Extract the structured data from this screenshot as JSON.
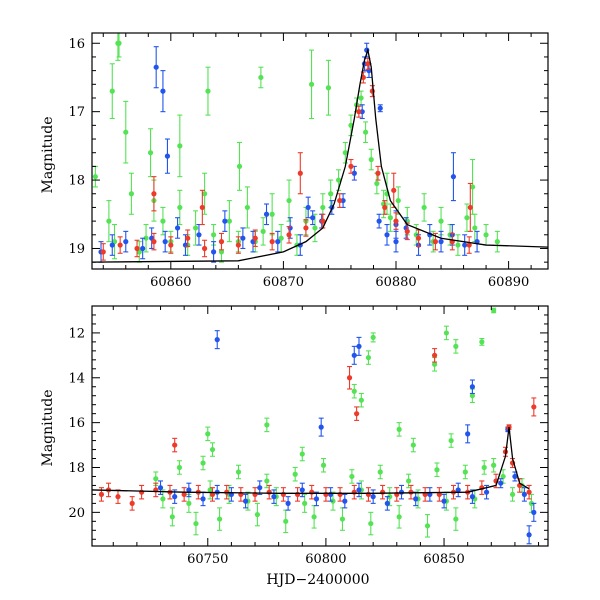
{
  "colors": {
    "green": "#55e355",
    "blue": "#2255ee",
    "red": "#ee3a2a",
    "model": "#000000"
  },
  "chart_data": [
    {
      "type": "scatter",
      "title": "",
      "xlabel": "",
      "ylabel": "Magnitude",
      "xlim": [
        60853,
        60893.5
      ],
      "ylim": [
        19.3,
        15.85
      ],
      "y_inverted": true,
      "xticks": [
        60860,
        60870,
        60880,
        60890
      ],
      "yticks": [
        16,
        17,
        18,
        19
      ],
      "grid": false,
      "legend": "none",
      "model_curve": {
        "x": [
          60853,
          60866,
          60870,
          60872,
          60873.5,
          60874.5,
          60875.5,
          60876.3,
          60876.8,
          60877.2,
          60877.5,
          60877.8,
          60878.2,
          60878.7,
          60879.5,
          60881,
          60884,
          60888,
          60893.5
        ],
        "y": [
          19.2,
          19.18,
          19.05,
          18.9,
          18.7,
          18.35,
          17.8,
          17.1,
          16.6,
          16.25,
          16.1,
          16.35,
          17.1,
          17.8,
          18.3,
          18.65,
          18.85,
          18.95,
          18.98
        ]
      },
      "series": [
        {
          "color_key": "green",
          "x": [
            60853.3,
            60854.5,
            60855.0,
            60855.4,
            60856.0,
            60856.5,
            60857.2,
            60857.8,
            60858.5,
            60859.3,
            60860.0,
            60860.8,
            60861.5,
            60862.2,
            60863.0,
            60863.8,
            60864.5,
            60865.2,
            60866.0,
            60866.8,
            60867.5,
            60868.2,
            60869.0,
            60869.8,
            60870.5,
            60871.2,
            60872.0,
            60872.8,
            60873.5,
            60874.2,
            60874.9,
            60875.5,
            60876.0,
            60876.5,
            60876.9,
            60877.3,
            60877.8,
            60878.3,
            60878.9,
            60879.5,
            60880.2,
            60881.0,
            60881.8,
            60882.5,
            60883.3,
            60884.0,
            60884.8,
            60885.5,
            60886.3,
            60887.0,
            60888.0,
            60889.0,
            60854.8,
            60855.3,
            60858.2,
            60860.8,
            60863.3,
            60866.1,
            60868.0,
            60872.5,
            60874.0,
            60879.2,
            60886.8
          ],
          "y": [
            17.95,
            18.6,
            18.9,
            16.0,
            17.3,
            18.2,
            19.05,
            18.85,
            18.3,
            18.6,
            18.9,
            18.4,
            18.95,
            18.7,
            18.2,
            18.8,
            19.05,
            18.6,
            18.9,
            18.4,
            18.9,
            18.75,
            18.5,
            18.85,
            18.3,
            18.95,
            18.6,
            18.7,
            18.4,
            18.2,
            18.0,
            17.6,
            17.2,
            16.9,
            16.8,
            17.3,
            17.7,
            18.05,
            18.35,
            18.55,
            18.3,
            18.6,
            18.8,
            18.4,
            18.9,
            18.6,
            18.8,
            18.95,
            18.55,
            18.7,
            18.8,
            18.9,
            16.7,
            16.0,
            17.6,
            17.5,
            16.7,
            17.8,
            16.5,
            16.6,
            16.65,
            18.2,
            18.1
          ],
          "err": [
            0.15,
            0.3,
            0.25,
            0.2,
            0.45,
            0.3,
            0.15,
            0.2,
            0.3,
            0.2,
            0.15,
            0.25,
            0.15,
            0.25,
            0.3,
            0.15,
            0.15,
            0.3,
            0.15,
            0.3,
            0.15,
            0.2,
            0.3,
            0.2,
            0.3,
            0.15,
            0.2,
            0.2,
            0.2,
            0.2,
            0.15,
            0.15,
            0.15,
            0.1,
            0.1,
            0.15,
            0.15,
            0.15,
            0.2,
            0.2,
            0.2,
            0.2,
            0.15,
            0.2,
            0.15,
            0.2,
            0.15,
            0.15,
            0.2,
            0.2,
            0.15,
            0.15,
            0.4,
            0.25,
            0.35,
            0.45,
            0.35,
            0.35,
            0.15,
            0.5,
            0.4,
            0.3,
            0.4
          ]
        },
        {
          "color_key": "blue",
          "x": [
            60853.8,
            60854.8,
            60856.0,
            60857.5,
            60858.3,
            60859.5,
            60860.6,
            60861.3,
            60862.5,
            60863.8,
            60864.8,
            60866.4,
            60867.3,
            60868.5,
            60869.5,
            60870.6,
            60871.5,
            60872.6,
            60873.4,
            60874.3,
            60875.3,
            60876.3,
            60877.0,
            60877.2,
            60877.4,
            60877.6,
            60878.5,
            60879.2,
            60880.0,
            60880.9,
            60882.0,
            60883.0,
            60884.0,
            60885.0,
            60886.1,
            60887.2,
            60858.7,
            60859.3,
            60859.7,
            60872.2,
            60878.6,
            60880.0,
            60885.1
          ],
          "y": [
            19.05,
            18.95,
            18.9,
            19.0,
            18.85,
            18.9,
            18.7,
            18.95,
            18.8,
            19.05,
            18.6,
            18.85,
            18.9,
            18.5,
            18.9,
            18.7,
            18.95,
            18.55,
            18.6,
            18.4,
            18.3,
            17.9,
            17.0,
            16.3,
            16.1,
            16.4,
            18.6,
            18.8,
            18.9,
            18.7,
            18.95,
            18.8,
            18.9,
            18.8,
            18.95,
            18.9,
            16.35,
            16.7,
            17.65,
            18.4,
            16.95,
            18.65,
            17.95
          ],
          "err": [
            0.15,
            0.15,
            0.15,
            0.15,
            0.15,
            0.15,
            0.15,
            0.15,
            0.15,
            0.15,
            0.15,
            0.15,
            0.15,
            0.15,
            0.15,
            0.15,
            0.15,
            0.1,
            0.1,
            0.1,
            0.1,
            0.1,
            0.1,
            0.1,
            0.1,
            0.1,
            0.1,
            0.15,
            0.15,
            0.15,
            0.15,
            0.15,
            0.15,
            0.15,
            0.15,
            0.15,
            0.3,
            0.3,
            0.25,
            0.15,
            0.05,
            0.2,
            0.35
          ]
        },
        {
          "color_key": "red",
          "x": [
            60854.0,
            60855.5,
            60857.0,
            60858.5,
            60860.0,
            60861.5,
            60863.0,
            60864.5,
            60866.0,
            60867.5,
            60869.0,
            60870.5,
            60872.0,
            60873.5,
            60875.0,
            60876.0,
            60876.7,
            60877.1,
            60877.5,
            60877.9,
            60878.4,
            60879.0,
            60880.0,
            60881.0,
            60882.0,
            60883.5,
            60885.0,
            60886.5,
            60858.5,
            60862.8,
            60871.5,
            60879.8,
            60886.6
          ],
          "y": [
            19.05,
            18.95,
            19.0,
            18.9,
            18.95,
            18.85,
            19.0,
            18.9,
            18.95,
            18.85,
            18.9,
            18.8,
            18.7,
            18.6,
            18.3,
            17.8,
            17.0,
            16.5,
            16.3,
            16.7,
            17.9,
            18.4,
            18.6,
            18.75,
            18.85,
            18.9,
            18.9,
            18.95,
            18.2,
            18.4,
            17.9,
            18.15,
            18.4
          ],
          "err": [
            0.12,
            0.12,
            0.12,
            0.12,
            0.12,
            0.12,
            0.12,
            0.12,
            0.12,
            0.12,
            0.12,
            0.12,
            0.12,
            0.1,
            0.1,
            0.1,
            0.08,
            0.08,
            0.08,
            0.08,
            0.1,
            0.1,
            0.12,
            0.12,
            0.12,
            0.12,
            0.12,
            0.12,
            0.25,
            0.25,
            0.3,
            0.25,
            0.35
          ]
        }
      ]
    },
    {
      "type": "scatter",
      "title": "",
      "xlabel": "HJD−2400000",
      "ylabel": "Magnitude",
      "xlim": [
        60701,
        60894
      ],
      "ylim": [
        21.5,
        10.8
      ],
      "y_inverted": true,
      "xticks": [
        60750,
        60800,
        60850
      ],
      "yticks": [
        12,
        14,
        16,
        18,
        20
      ],
      "grid": false,
      "legend": "none",
      "model_curve": {
        "x": [
          60701,
          60740,
          60780,
          60820,
          60860,
          60872,
          60876,
          60877.5,
          60879,
          60882,
          60886
        ],
        "y": [
          19.0,
          19.1,
          19.15,
          19.15,
          19.1,
          18.8,
          17.5,
          16.2,
          17.6,
          18.7,
          18.95
        ]
      },
      "series": [
        {
          "color_key": "green",
          "x": [
            60728,
            60731,
            60735,
            60738,
            60742,
            60745,
            60748,
            60751,
            60755,
            60759,
            60763,
            60767,
            60771,
            60775,
            60779,
            60783,
            60787,
            60791,
            60795,
            60799,
            60803,
            60807,
            60811,
            60815,
            60819,
            60823,
            60827,
            60831,
            60835,
            60839,
            60843,
            60847,
            60851,
            60855,
            60859,
            60863,
            60867,
            60871,
            60875,
            60879,
            60883,
            60887,
            60750,
            60752,
            60775,
            60790,
            60812,
            60818,
            60820,
            60831,
            60846,
            60851,
            60855,
            60862,
            60866,
            60871,
            60815,
            60837,
            60853
          ],
          "y": [
            18.5,
            19.4,
            20.2,
            18.0,
            19.6,
            20.5,
            17.8,
            19.0,
            20.3,
            19.2,
            18.2,
            19.5,
            20.1,
            18.6,
            19.3,
            20.4,
            18.3,
            19.6,
            20.2,
            17.9,
            19.5,
            20.3,
            18.4,
            19.0,
            20.5,
            18.2,
            19.3,
            20.2,
            18.6,
            19.4,
            20.6,
            18.1,
            19.5,
            20.3,
            18.2,
            19.4,
            18.0,
            17.9,
            18.4,
            19.2,
            18.8,
            19.6,
            16.5,
            17.2,
            16.1,
            17.4,
            14.6,
            13.1,
            12.2,
            16.3,
            13.4,
            12.0,
            12.6,
            14.8,
            12.4,
            11.0,
            15.0,
            17.0,
            16.8
          ],
          "err": [
            0.3,
            0.4,
            0.4,
            0.3,
            0.4,
            0.5,
            0.3,
            0.4,
            0.5,
            0.4,
            0.3,
            0.4,
            0.5,
            0.3,
            0.4,
            0.5,
            0.3,
            0.4,
            0.5,
            0.3,
            0.4,
            0.5,
            0.3,
            0.4,
            0.5,
            0.3,
            0.4,
            0.5,
            0.3,
            0.4,
            0.5,
            0.3,
            0.4,
            0.5,
            0.3,
            0.4,
            0.3,
            0.3,
            0.3,
            0.3,
            0.3,
            0.4,
            0.3,
            0.3,
            0.3,
            0.3,
            0.3,
            0.3,
            0.2,
            0.3,
            0.3,
            0.3,
            0.3,
            0.3,
            0.15,
            0.1,
            0.3,
            0.3,
            0.3
          ]
        },
        {
          "color_key": "blue",
          "x": [
            60730,
            60736,
            60742,
            60748,
            60754,
            60760,
            60766,
            60772,
            60778,
            60784,
            60790,
            60796,
            60802,
            60808,
            60814,
            60820,
            60826,
            60832,
            60838,
            60844,
            60850,
            60856,
            60862,
            60868,
            60874,
            60877,
            60880,
            60884,
            60888,
            60754,
            60798,
            60812,
            60814,
            60860,
            60862,
            60886
          ],
          "y": [
            18.9,
            19.3,
            19.0,
            19.4,
            19.1,
            19.2,
            19.5,
            18.9,
            19.3,
            19.6,
            19.0,
            19.4,
            19.2,
            19.5,
            19.0,
            19.3,
            19.6,
            19.1,
            19.4,
            19.2,
            19.5,
            19.0,
            19.3,
            19.1,
            18.7,
            16.3,
            18.4,
            19.2,
            20.0,
            12.3,
            16.2,
            13.0,
            12.6,
            16.5,
            14.4,
            21.0
          ],
          "err": [
            0.3,
            0.3,
            0.3,
            0.3,
            0.3,
            0.3,
            0.3,
            0.3,
            0.3,
            0.3,
            0.3,
            0.3,
            0.3,
            0.3,
            0.3,
            0.3,
            0.3,
            0.3,
            0.3,
            0.3,
            0.3,
            0.3,
            0.3,
            0.3,
            0.2,
            0.1,
            0.2,
            0.3,
            0.4,
            0.4,
            0.4,
            0.4,
            0.4,
            0.4,
            0.3,
            0.4
          ]
        },
        {
          "color_key": "red",
          "x": [
            60705,
            60708,
            60712,
            60718,
            60722,
            60728,
            60734,
            60740,
            60746,
            60752,
            60758,
            60764,
            60770,
            60776,
            60782,
            60788,
            60794,
            60800,
            60806,
            60812,
            60818,
            60824,
            60830,
            60836,
            60842,
            60848,
            60854,
            60860,
            60866,
            60872,
            60876,
            60877.5,
            60879,
            60882,
            60886,
            60736,
            60810,
            60813,
            60846,
            60888
          ],
          "y": [
            19.2,
            19.0,
            19.3,
            19.6,
            19.1,
            19.0,
            19.1,
            19.2,
            19.1,
            19.2,
            19.1,
            19.2,
            19.2,
            19.1,
            19.2,
            19.2,
            19.1,
            19.2,
            19.2,
            19.1,
            19.2,
            19.1,
            19.2,
            19.1,
            19.2,
            19.2,
            19.1,
            19.1,
            18.9,
            18.6,
            17.3,
            16.2,
            17.8,
            18.8,
            19.1,
            17.0,
            14.0,
            15.6,
            13.0,
            15.3
          ],
          "err": [
            0.3,
            0.3,
            0.3,
            0.3,
            0.3,
            0.3,
            0.3,
            0.3,
            0.3,
            0.3,
            0.3,
            0.3,
            0.3,
            0.3,
            0.3,
            0.3,
            0.3,
            0.3,
            0.3,
            0.3,
            0.3,
            0.3,
            0.3,
            0.3,
            0.3,
            0.3,
            0.3,
            0.3,
            0.3,
            0.3,
            0.2,
            0.1,
            0.2,
            0.3,
            0.3,
            0.3,
            0.5,
            0.3,
            0.3,
            0.4
          ]
        }
      ]
    }
  ]
}
